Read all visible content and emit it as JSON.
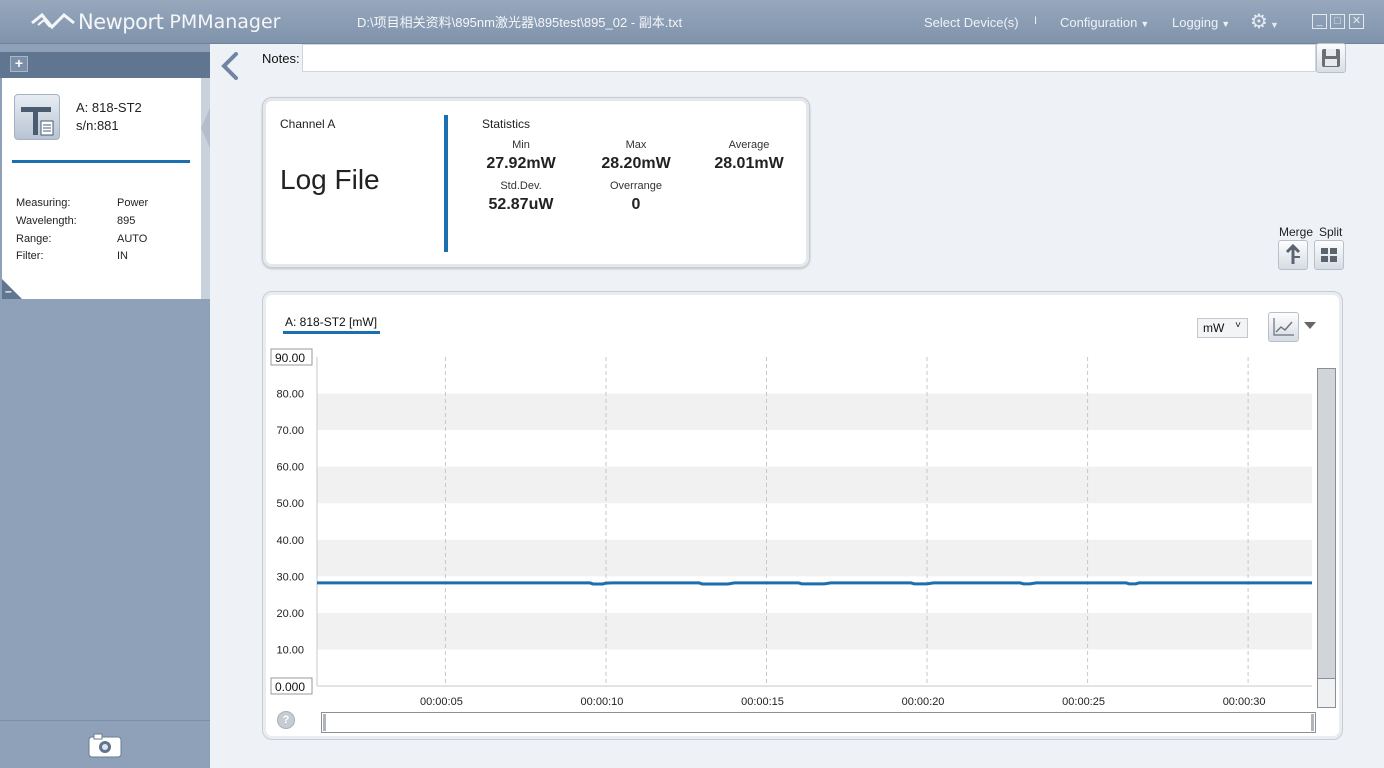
{
  "app": {
    "brand": "Newport",
    "product": "PMManager",
    "file_path": "D:\\项目相关资料\\895nm激光器\\895test\\895_02 - 副本.txt"
  },
  "menu": {
    "select_devices": "Select Device(s)",
    "separator": "I",
    "configuration": "Configuration",
    "logging": "Logging"
  },
  "window_buttons": {
    "minimize": "_",
    "maximize": "□",
    "close": "✕"
  },
  "device": {
    "name": "A: 818-ST2",
    "serial": "s/n:881",
    "properties": [
      {
        "key": "Measuring:",
        "value": "Power"
      },
      {
        "key": "Wavelength:",
        "value": "895"
      },
      {
        "key": "Range:",
        "value": "AUTO"
      },
      {
        "key": "Filter:",
        "value": "IN"
      }
    ],
    "add_label": "+",
    "collapse_label": "–"
  },
  "notes": {
    "label": "Notes:",
    "value": ""
  },
  "channel": {
    "label": "Channel A",
    "title": "Log File"
  },
  "statistics": {
    "label": "Statistics",
    "min_label": "Min",
    "min_value": "27.92mW",
    "max_label": "Max",
    "max_value": "28.20mW",
    "avg_label": "Average",
    "avg_value": "28.01mW",
    "std_label": "Std.Dev.",
    "std_value": "52.87uW",
    "over_label": "Overrange",
    "over_value": "0"
  },
  "layout_controls": {
    "merge": "Merge",
    "split": "Split"
  },
  "chart_panel": {
    "legend": "A: 818-ST2 [mW]",
    "unit": "mW",
    "help": "?"
  },
  "colors": {
    "accent": "#1c6fae",
    "titlebar": "#8b9db3",
    "sidebar": "#8ea1b8"
  },
  "chart_data": {
    "type": "line",
    "xlabel": "",
    "ylabel": "",
    "ylim": [
      0,
      90
    ],
    "ytick_top_label": "90.00",
    "ytick_bottom_label": "0.000",
    "yticks": [
      "80.00",
      "70.00",
      "60.00",
      "50.00",
      "40.00",
      "30.00",
      "20.00",
      "10.00"
    ],
    "ytick_values": [
      80,
      70,
      60,
      50,
      40,
      30,
      20,
      10
    ],
    "xlim_seconds": [
      1.0,
      31.99
    ],
    "xticks": [
      "00:00:05",
      "00:00:10",
      "00:00:15",
      "00:00:20",
      "00:00:25",
      "00:00:30"
    ],
    "xtick_values": [
      5,
      10,
      15,
      20,
      25,
      30
    ],
    "grid": "alternating horizontal bands, dashed vertical lines",
    "series": [
      {
        "x": [
          1.0,
          9.5,
          9.6,
          9.9,
          10.0,
          10.2,
          12.9,
          13.0,
          13.8,
          14.0,
          16.0,
          16.1,
          16.8,
          17.0,
          19.5,
          19.6,
          20.0,
          20.2,
          22.9,
          23.0,
          23.2,
          23.4,
          26.2,
          26.3,
          26.5,
          26.6,
          31.99
        ],
        "values": [
          28.2,
          28.2,
          27.92,
          27.92,
          28.15,
          28.2,
          28.2,
          27.92,
          27.92,
          28.2,
          28.2,
          27.95,
          27.95,
          28.2,
          28.2,
          27.95,
          27.95,
          28.2,
          28.2,
          27.95,
          27.95,
          28.2,
          28.2,
          27.95,
          27.95,
          28.2,
          28.2
        ]
      }
    ]
  }
}
